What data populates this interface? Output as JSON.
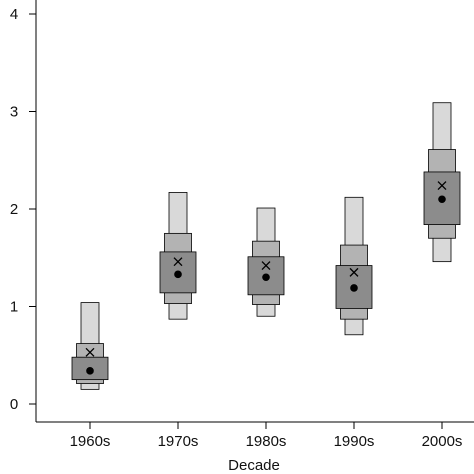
{
  "chart_data": {
    "type": "box",
    "title": "",
    "xlabel": "Decade",
    "ylabel": "",
    "ylim": [
      -0.1,
      4.2
    ],
    "yticks": [
      0,
      1,
      2,
      3,
      4
    ],
    "ytick_labels": [
      "0",
      "1",
      "2",
      "3",
      "4"
    ],
    "grid": false,
    "legend": "none",
    "categories": [
      "1960s",
      "1970s",
      "1980s",
      "1990s",
      "2000s"
    ],
    "boxes": [
      {
        "outer": [
          0.15,
          1.04
        ],
        "middle": [
          0.21,
          0.62
        ],
        "inner": [
          0.25,
          0.48
        ],
        "median": 0.34,
        "mean": 0.53
      },
      {
        "outer": [
          0.87,
          2.17
        ],
        "middle": [
          1.03,
          1.75
        ],
        "inner": [
          1.14,
          1.56
        ],
        "median": 1.33,
        "mean": 1.46
      },
      {
        "outer": [
          0.9,
          2.01
        ],
        "middle": [
          1.02,
          1.67
        ],
        "inner": [
          1.12,
          1.51
        ],
        "median": 1.3,
        "mean": 1.42
      },
      {
        "outer": [
          0.71,
          2.12
        ],
        "middle": [
          0.87,
          1.63
        ],
        "inner": [
          0.98,
          1.42
        ],
        "median": 1.19,
        "mean": 1.35
      },
      {
        "outer": [
          1.46,
          3.09
        ],
        "middle": [
          1.7,
          2.61
        ],
        "inner": [
          1.84,
          2.38
        ],
        "median": 2.1,
        "mean": 2.24
      }
    ],
    "colors": {
      "outer": "#d9d9d9",
      "middle": "#b3b3b3",
      "inner": "#8c8c8c",
      "stroke": "#000000"
    },
    "markers": {
      "median": "filled-circle",
      "mean": "x-cross"
    }
  }
}
